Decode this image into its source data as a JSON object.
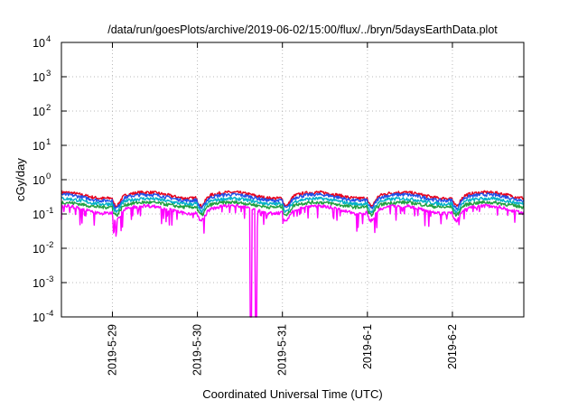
{
  "chart_data": {
    "type": "line",
    "title": "/data/run/goesPlots/archive/2019-06-02/15:00/flux/../bryn/5daysEarthData.plot",
    "xlabel": "Coordinated Universal Time (UTC)",
    "ylabel": "cGy/day",
    "yscale": "log",
    "ylim": [
      0.0001,
      10000
    ],
    "xlim": [
      -0.6,
      4.84
    ],
    "grid": true,
    "y_ticks": [
      {
        "base": "10",
        "exp": "4"
      },
      {
        "base": "10",
        "exp": "3"
      },
      {
        "base": "10",
        "exp": "2"
      },
      {
        "base": "10",
        "exp": "1"
      },
      {
        "base": "10",
        "exp": "0"
      },
      {
        "base": "10",
        "exp": "-1"
      },
      {
        "base": "10",
        "exp": "-2"
      },
      {
        "base": "10",
        "exp": "-3"
      },
      {
        "base": "10",
        "exp": "-4"
      }
    ],
    "x_ticks": [
      {
        "label": "2019-5-29",
        "day": 0
      },
      {
        "label": "2019-5-30",
        "day": 1
      },
      {
        "label": "2019-5-31",
        "day": 2
      },
      {
        "label": "2019-6-1",
        "day": 3
      },
      {
        "label": "2019-6-2",
        "day": 4
      }
    ],
    "series": [
      {
        "color": "#e8001c",
        "level": 0.36,
        "amp": 0.2
      },
      {
        "color": "#2050e8",
        "level": 0.31,
        "amp": 0.2
      },
      {
        "color": "#00b0c8",
        "level": 0.24,
        "amp": 0.18
      },
      {
        "color": "#20a040",
        "level": 0.19,
        "amp": 0.16
      },
      {
        "color": "#ff00ff",
        "level": 0.14,
        "amp": 0.25
      }
    ],
    "dropouts": [
      {
        "day": 1.63,
        "value": 0.0001
      },
      {
        "day": 1.69,
        "value": 0.0001
      }
    ]
  }
}
